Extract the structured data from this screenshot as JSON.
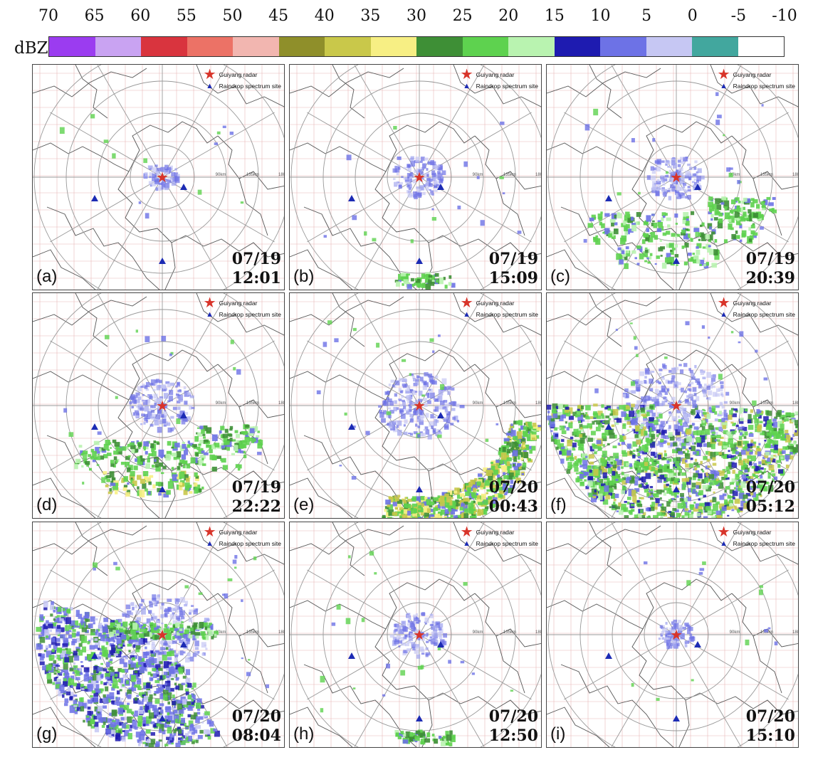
{
  "colorbar": {
    "unit_label": "dBZ",
    "ticks": [
      "70",
      "65",
      "60",
      "55",
      "50",
      "45",
      "40",
      "35",
      "30",
      "25",
      "20",
      "15",
      "10",
      "5",
      "0",
      "-5",
      "-10"
    ],
    "colors": [
      "#9b3cf0",
      "#c9a3f2",
      "#d9343e",
      "#ec7266",
      "#f2b6b0",
      "#8f8f2a",
      "#c9c84a",
      "#f7ef84",
      "#3e8f36",
      "#5ed24f",
      "#b9f3b0",
      "#1e1bb0",
      "#6d72e6",
      "#c6c7f3",
      "#42a79e",
      "#ffffff"
    ]
  },
  "legend": {
    "radar_label": "Guiyang radar",
    "site_label": "Raindrop spectrum site"
  },
  "range_ring_labels": [
    "90km",
    "135km",
    "180km"
  ],
  "panels": [
    {
      "label": "(a)",
      "date": "07/19",
      "time": "12:01",
      "echo_level": 0.1,
      "echo_type": "core"
    },
    {
      "label": "(b)",
      "date": "07/19",
      "time": "15:09",
      "echo_level": 0.3,
      "echo_type": "core"
    },
    {
      "label": "(c)",
      "date": "07/19",
      "time": "20:39",
      "echo_level": 0.35,
      "echo_type": "southbands"
    },
    {
      "label": "(d)",
      "date": "07/19",
      "time": "22:22",
      "echo_level": 0.45,
      "echo_type": "southbands"
    },
    {
      "label": "(e)",
      "date": "07/20",
      "time": "00:43",
      "echo_level": 0.65,
      "echo_type": "arc"
    },
    {
      "label": "(f)",
      "date": "07/20",
      "time": "05:12",
      "echo_level": 0.95,
      "echo_type": "full"
    },
    {
      "label": "(g)",
      "date": "07/20",
      "time": "08:04",
      "echo_level": 0.85,
      "echo_type": "west"
    },
    {
      "label": "(h)",
      "date": "07/20",
      "time": "12:50",
      "echo_level": 0.35,
      "echo_type": "core"
    },
    {
      "label": "(i)",
      "date": "07/20",
      "time": "15:10",
      "echo_level": 0.12,
      "echo_type": "core"
    }
  ]
}
